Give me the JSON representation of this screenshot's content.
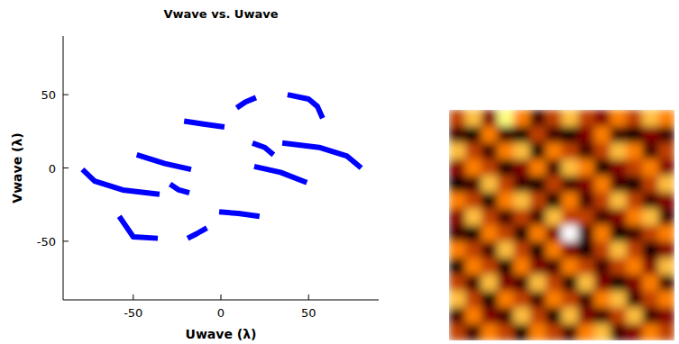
{
  "chart_data": [
    {
      "type": "line",
      "title": "Vwave vs. Uwave",
      "x_label": "Uwave (λ)",
      "y_label": "Vwave (λ)",
      "xlim": [
        -90,
        90
      ],
      "ylim": [
        -90,
        90
      ],
      "xticks": [
        -50,
        0,
        50
      ],
      "yticks": [
        -50,
        0,
        50
      ],
      "grid": false,
      "color": "#0000ff",
      "marker": "none",
      "line_style": "solid",
      "series": [
        {
          "x": [
            -79,
            -72,
            -56,
            -35
          ],
          "values": [
            -1,
            -9,
            -15,
            -18
          ]
        },
        {
          "x": [
            80,
            72,
            56,
            35
          ],
          "values": [
            0,
            8,
            14,
            17
          ]
        },
        {
          "x": [
            38,
            50,
            55,
            58
          ],
          "values": [
            50,
            47,
            42,
            34
          ]
        },
        {
          "x": [
            -58,
            -54,
            -50,
            -36
          ],
          "values": [
            -33,
            -40,
            -47,
            -48
          ]
        },
        {
          "x": [
            -21,
            -10,
            2
          ],
          "values": [
            32,
            30,
            28
          ]
        },
        {
          "x": [
            -1,
            10,
            22
          ],
          "values": [
            -30,
            -31,
            -33
          ]
        },
        {
          "x": [
            9,
            14,
            20
          ],
          "values": [
            41,
            45,
            48
          ]
        },
        {
          "x": [
            -19,
            -14,
            -8
          ],
          "values": [
            -48,
            -45,
            -41
          ]
        },
        {
          "x": [
            -48,
            -32,
            -17
          ],
          "values": [
            9,
            3,
            -1
          ]
        },
        {
          "x": [
            19,
            34,
            49
          ],
          "values": [
            1,
            -3,
            -10
          ]
        },
        {
          "x": [
            -29,
            -24,
            -18
          ],
          "values": [
            -11,
            -15,
            -17
          ]
        },
        {
          "x": [
            18,
            25,
            30
          ],
          "values": [
            17,
            14,
            9
          ]
        }
      ]
    },
    {
      "type": "heatmap",
      "tick_labels": false,
      "cells": [
        [
          0.5,
          0.7,
          0.4,
          0.8,
          0.6,
          0.3,
          0.5,
          0.7,
          0.5,
          0.4,
          0.6,
          0.5,
          0.7,
          0.6
        ],
        [
          0.3,
          0.2,
          0.6,
          0.3,
          0.2,
          0.5,
          0.3,
          0.2,
          0.4,
          0.6,
          0.3,
          0.2,
          0.4,
          0.3
        ],
        [
          0.7,
          0.5,
          0.3,
          0.6,
          0.7,
          0.2,
          0.6,
          0.5,
          0.3,
          0.5,
          0.7,
          0.6,
          0.3,
          0.5
        ],
        [
          0.4,
          0.6,
          0.5,
          0.2,
          0.4,
          0.6,
          0.3,
          0.7,
          0.6,
          0.2,
          0.4,
          0.5,
          0.6,
          0.4
        ],
        [
          0.2,
          0.3,
          0.7,
          0.5,
          0.3,
          0.2,
          0.5,
          0.3,
          0.4,
          0.6,
          0.3,
          0.2,
          0.5,
          0.7
        ],
        [
          0.6,
          0.5,
          0.2,
          0.6,
          0.7,
          0.5,
          0.2,
          0.6,
          0.3,
          0.5,
          0.7,
          0.5,
          0.3,
          0.4
        ],
        [
          0.4,
          0.7,
          0.5,
          0.3,
          0.5,
          0.3,
          0.7,
          0.5,
          0.5,
          0.3,
          0.4,
          0.6,
          0.7,
          0.3
        ],
        [
          0.3,
          0.2,
          0.6,
          0.5,
          0.2,
          0.6,
          0.4,
          1.0,
          0.3,
          0.6,
          0.2,
          0.3,
          0.5,
          0.6
        ],
        [
          0.6,
          0.5,
          0.3,
          0.7,
          0.5,
          0.2,
          0.6,
          0.4,
          0.2,
          0.5,
          0.7,
          0.5,
          0.2,
          0.4
        ],
        [
          0.2,
          0.6,
          0.5,
          0.2,
          0.6,
          0.4,
          0.3,
          0.6,
          0.5,
          0.3,
          0.5,
          0.6,
          0.4,
          0.7
        ],
        [
          0.5,
          0.3,
          0.7,
          0.4,
          0.3,
          0.7,
          0.5,
          0.2,
          0.7,
          0.4,
          0.2,
          0.4,
          0.6,
          0.3
        ],
        [
          0.7,
          0.5,
          0.2,
          0.6,
          0.5,
          0.3,
          0.6,
          0.5,
          0.3,
          0.6,
          0.7,
          0.3,
          0.5,
          0.6
        ],
        [
          0.3,
          0.6,
          0.4,
          0.3,
          0.7,
          0.5,
          0.2,
          0.7,
          0.4,
          0.3,
          0.5,
          0.7,
          0.3,
          0.4
        ],
        [
          0.5,
          0.3,
          0.6,
          0.5,
          0.2,
          0.6,
          0.5,
          0.3,
          0.6,
          0.7,
          0.3,
          0.4,
          0.6,
          0.5
        ]
      ]
    }
  ]
}
